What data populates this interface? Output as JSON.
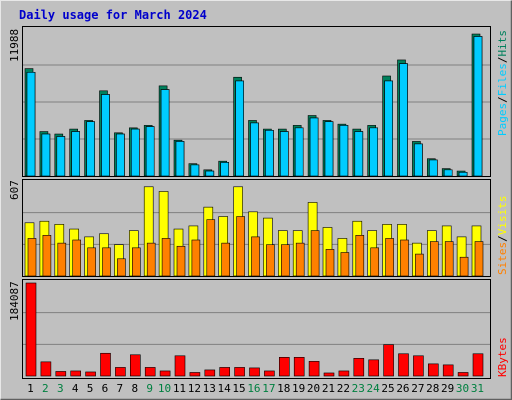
{
  "title": "Daily usage for March 2024",
  "colors": {
    "background": "#c0c0c0",
    "plot_background": "#c0c0c0",
    "grid": "#808080",
    "title": "#0000cc",
    "weekday_label": "#000000",
    "weekend_label": "#008040",
    "hits": "#00805c",
    "files": "#00ccff",
    "pages": "#00ccff",
    "visits": "#ffff00",
    "sites": "#ff8000",
    "kbytes": "#ff0000"
  },
  "chart_data": [
    {
      "type": "bar",
      "name": "hits-files-pages",
      "categories": [
        "1",
        "2",
        "3",
        "4",
        "5",
        "6",
        "7",
        "8",
        "9",
        "10",
        "11",
        "12",
        "13",
        "14",
        "15",
        "16",
        "17",
        "18",
        "19",
        "20",
        "21",
        "22",
        "23",
        "24",
        "25",
        "26",
        "27",
        "28",
        "29",
        "30",
        "31"
      ],
      "weekend_days": [
        "2",
        "3",
        "9",
        "10",
        "16",
        "17",
        "23",
        "24",
        "30",
        "31"
      ],
      "y_max_label": "11988",
      "ylim": [
        0,
        11988
      ],
      "legend": [
        {
          "label": "Pages",
          "color_key": "pages"
        },
        {
          "label": "/",
          "color_key": "separator"
        },
        {
          "label": "Files",
          "color_key": "files"
        },
        {
          "label": "/",
          "color_key": "separator"
        },
        {
          "label": "Hits",
          "color_key": "hits"
        }
      ],
      "series": [
        {
          "name": "Hits",
          "values": [
            8700,
            3600,
            3400,
            3800,
            4500,
            6900,
            3500,
            3900,
            4100,
            7300,
            2900,
            1000,
            500,
            1200,
            8000,
            4500,
            3800,
            3800,
            4100,
            4900,
            4500,
            4200,
            3800,
            4100,
            8100,
            9400,
            2800,
            1400,
            600,
            400,
            11500
          ]
        },
        {
          "name": "Files",
          "values": [
            8400,
            3400,
            3200,
            3600,
            4400,
            6600,
            3400,
            3800,
            4000,
            7000,
            2800,
            900,
            400,
            1100,
            7700,
            4300,
            3700,
            3600,
            3900,
            4700,
            4400,
            4100,
            3600,
            3900,
            7700,
            9100,
            2600,
            1300,
            500,
            300,
            11300
          ]
        },
        {
          "name": "Pages",
          "values": [
            8400,
            3400,
            3200,
            3600,
            4400,
            6600,
            3400,
            3800,
            4000,
            7000,
            2800,
            900,
            400,
            1100,
            7700,
            4300,
            3700,
            3600,
            3900,
            4700,
            4400,
            4100,
            3600,
            3900,
            7700,
            9100,
            2600,
            1300,
            500,
            300,
            11300
          ]
        }
      ]
    },
    {
      "type": "bar",
      "name": "visits-sites",
      "categories": [
        "1",
        "2",
        "3",
        "4",
        "5",
        "6",
        "7",
        "8",
        "9",
        "10",
        "11",
        "12",
        "13",
        "14",
        "15",
        "16",
        "17",
        "18",
        "19",
        "20",
        "21",
        "22",
        "23",
        "24",
        "25",
        "26",
        "27",
        "28",
        "29",
        "30",
        "31"
      ],
      "y_max_label": "607",
      "ylim": [
        0,
        607
      ],
      "legend": [
        {
          "label": "Sites",
          "color_key": "sites"
        },
        {
          "label": "/",
          "color_key": "separator"
        },
        {
          "label": "Visits",
          "color_key": "visits"
        }
      ],
      "series": [
        {
          "name": "Visits",
          "values": [
            340,
            350,
            330,
            300,
            250,
            270,
            200,
            290,
            570,
            540,
            300,
            320,
            440,
            380,
            570,
            410,
            370,
            290,
            290,
            470,
            310,
            240,
            350,
            290,
            330,
            330,
            210,
            290,
            320,
            250,
            320
          ]
        },
        {
          "name": "Sites",
          "values": [
            240,
            260,
            210,
            230,
            180,
            180,
            110,
            180,
            210,
            240,
            190,
            230,
            360,
            210,
            380,
            250,
            200,
            200,
            210,
            290,
            170,
            150,
            260,
            180,
            240,
            230,
            140,
            220,
            220,
            120,
            220
          ]
        }
      ]
    },
    {
      "type": "bar",
      "name": "kbytes",
      "categories": [
        "1",
        "2",
        "3",
        "4",
        "5",
        "6",
        "7",
        "8",
        "9",
        "10",
        "11",
        "12",
        "13",
        "14",
        "15",
        "16",
        "17",
        "18",
        "19",
        "20",
        "21",
        "22",
        "23",
        "24",
        "25",
        "26",
        "27",
        "28",
        "29",
        "30",
        "31"
      ],
      "y_max_label": "184087",
      "ylim": [
        0,
        184087
      ],
      "legend": [
        {
          "label": "KBytes",
          "color_key": "kbytes"
        }
      ],
      "series": [
        {
          "name": "KBytes",
          "values": [
            184087,
            28000,
            9000,
            10000,
            8000,
            45000,
            17000,
            42000,
            17000,
            10000,
            40000,
            7000,
            12000,
            17000,
            17000,
            16000,
            10000,
            37000,
            37000,
            29000,
            6000,
            10000,
            35000,
            32000,
            62000,
            44000,
            40000,
            24000,
            22000,
            7000,
            44000
          ]
        }
      ]
    }
  ]
}
